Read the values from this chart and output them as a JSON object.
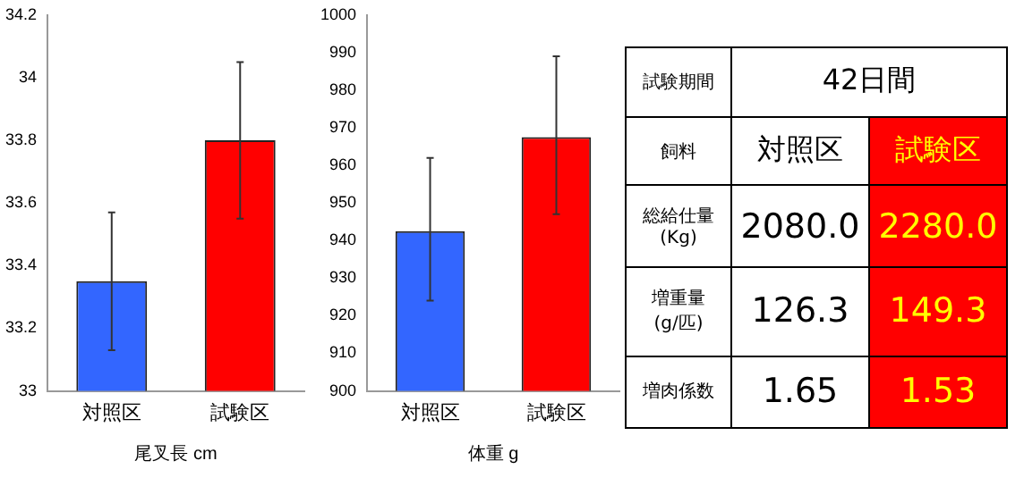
{
  "chart_data": [
    {
      "type": "bar",
      "xlabel": "尾叉長 cm",
      "categories": [
        "対照区",
        "試験区"
      ],
      "colors": [
        "#3366ff",
        "#ff0000"
      ],
      "values": [
        33.35,
        33.8
      ],
      "errors": [
        [
          33.13,
          33.57
        ],
        [
          33.55,
          34.05
        ]
      ],
      "ylim": [
        33,
        34.2
      ],
      "yticks": [
        33,
        33.2,
        33.4,
        33.6,
        33.8,
        34,
        34.2
      ],
      "grid": false,
      "legend": false
    },
    {
      "type": "bar",
      "xlabel": "体重 g",
      "categories": [
        "対照区",
        "試験区"
      ],
      "colors": [
        "#3366ff",
        "#ff0000"
      ],
      "values": [
        942.5,
        967.5
      ],
      "errors": [
        [
          924,
          962
        ],
        [
          947,
          989
        ]
      ],
      "ylim": [
        900,
        1000
      ],
      "yticks": [
        900,
        910,
        920,
        930,
        940,
        950,
        960,
        970,
        980,
        990,
        1000
      ],
      "grid": false,
      "legend": false
    },
    {
      "type": "other",
      "annotations": [
        "試験期間",
        "42日間",
        "飼料",
        "対照区",
        "試験区",
        "総給仕量\n(Kg)",
        "2080.0",
        "2280.0",
        "増重量\n(g/匹)",
        "126.3",
        "149.3",
        "増肉係数",
        "1.65",
        "1.53"
      ]
    }
  ]
}
